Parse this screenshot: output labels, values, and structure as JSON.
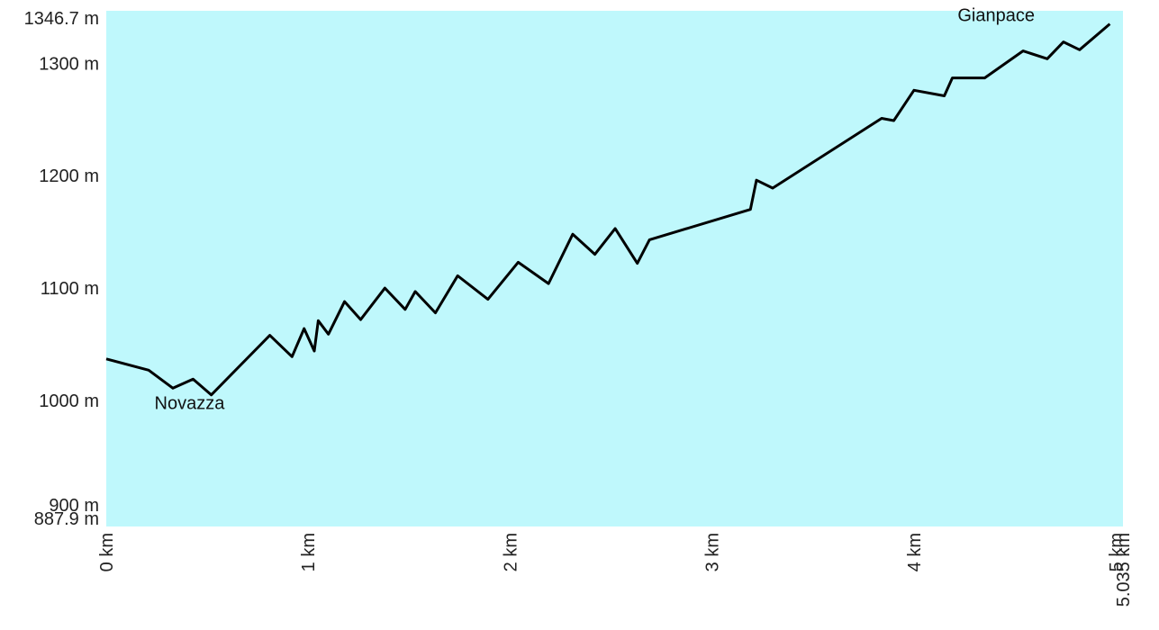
{
  "chart_data": {
    "type": "area",
    "title": "",
    "xlabel": "",
    "ylabel": "",
    "xlim": [
      0,
      5.035
    ],
    "ylim": [
      887.9,
      1346.7
    ],
    "fill_color": "#bff8fc",
    "line_color": "#000000",
    "grid": false,
    "legend": "none",
    "y_ticks": [
      {
        "value": 1346.7,
        "label": "1346.7 m"
      },
      {
        "value": 1300,
        "label": "1300 m"
      },
      {
        "value": 1200,
        "label": "1200 m"
      },
      {
        "value": 1100,
        "label": "1100 m"
      },
      {
        "value": 1000,
        "label": "1000 m"
      },
      {
        "value": 900,
        "label": "900 m"
      },
      {
        "value": 887.9,
        "label": "887.9 m"
      }
    ],
    "x_ticks": [
      {
        "value": 0,
        "label": "0 km"
      },
      {
        "value": 1,
        "label": "1 km"
      },
      {
        "value": 2,
        "label": "2 km"
      },
      {
        "value": 3,
        "label": "3 km"
      },
      {
        "value": 4,
        "label": "4 km"
      },
      {
        "value": 5,
        "label": "5 km"
      },
      {
        "value": 5.035,
        "label": "5.035 km"
      }
    ],
    "annotations": [
      {
        "text": "Novazza",
        "x": 0.1,
        "y": 986
      },
      {
        "text": "Gianpace",
        "x": 4.63,
        "y": 1331
      }
    ],
    "series": [
      {
        "x": [
          0,
          0.21,
          0.33,
          0.43,
          0.52,
          0.81,
          0.92,
          0.98,
          1.03,
          1.05,
          1.1,
          1.18,
          1.26,
          1.38,
          1.48,
          1.53,
          1.63,
          1.74,
          1.89,
          2.04,
          2.19,
          2.31,
          2.42,
          2.52,
          2.63,
          2.69,
          3.19,
          3.22,
          3.3,
          3.84,
          3.9,
          4.0,
          4.15,
          4.19,
          4.35,
          4.54,
          4.66,
          4.74,
          4.82,
          4.97
        ],
        "y": [
          1037,
          1027,
          1011,
          1019,
          1005,
          1058,
          1039,
          1064,
          1044,
          1071,
          1059,
          1088,
          1072,
          1100,
          1081,
          1097,
          1078,
          1111,
          1090,
          1123,
          1104,
          1148,
          1130,
          1153,
          1122,
          1143,
          1170,
          1196,
          1189,
          1251,
          1249,
          1276,
          1271,
          1287,
          1287,
          1311,
          1304,
          1319,
          1312,
          1335
        ]
      }
    ]
  }
}
